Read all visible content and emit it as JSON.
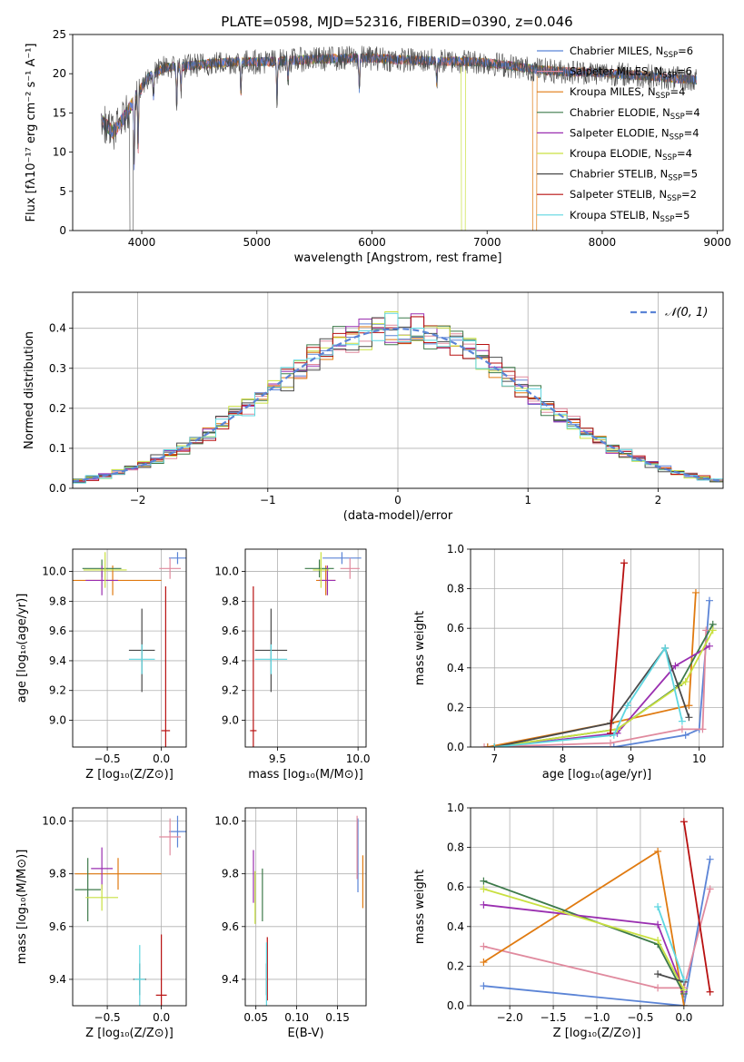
{
  "title": "PLATE=0598, MJD=52316, FIBERID=0390, z=0.046",
  "colors": {
    "Chabrier MILES": "#5b84d6",
    "Salpeter MILES": "#e08a9e",
    "Kroupa MILES": "#e07a10",
    "Chabrier ELODIE": "#3d7a4a",
    "Salpeter ELODIE": "#9a2fb0",
    "Kroupa ELODIE": "#c9e040",
    "Chabrier STELIB": "#4a4a4a",
    "Salpeter STELIB": "#b81010",
    "Kroupa STELIB": "#5ed6e0",
    "normal": "#5b84d6",
    "grid": "#b0b0b0"
  },
  "chart_data": [
    {
      "id": "spectrum",
      "type": "line",
      "xlabel": "wavelength [Angstrom, rest frame]",
      "ylabel": "Flux [fλ10⁻¹⁷ erg cm⁻² s⁻¹ A⁻¹]",
      "xlim": [
        3400,
        9050
      ],
      "ylim": [
        0,
        25
      ],
      "xticks": [
        4000,
        5000,
        6000,
        7000,
        8000,
        9000
      ],
      "yticks": [
        0,
        5,
        10,
        15,
        20,
        25
      ],
      "grid": false,
      "legend_position": "top-right",
      "legend": [
        {
          "name": "Chabrier MILES",
          "label": "Chabrier MILES, N",
          "nssp": "=6"
        },
        {
          "name": "Salpeter MILES",
          "label": "Salpeter MILES, N",
          "nssp": "=6"
        },
        {
          "name": "Kroupa MILES",
          "label": "Kroupa MILES, N",
          "nssp": "=4"
        },
        {
          "name": "Chabrier ELODIE",
          "label": "Chabrier ELODIE, N",
          "nssp": "=4"
        },
        {
          "name": "Salpeter ELODIE",
          "label": "Salpeter ELODIE, N",
          "nssp": "=4"
        },
        {
          "name": "Kroupa ELODIE",
          "label": "Kroupa ELODIE, N",
          "nssp": "=4"
        },
        {
          "name": "Chabrier STELIB",
          "label": "Chabrier STELIB, N",
          "nssp": "=5"
        },
        {
          "name": "Salpeter STELIB",
          "label": "Salpeter STELIB, N",
          "nssp": "=2"
        },
        {
          "name": "Kroupa STELIB",
          "label": "Kroupa STELIB, N",
          "nssp": "=5"
        }
      ],
      "legend_subscript": "SSP",
      "continuum": [
        [
          3650,
          14.0
        ],
        [
          3750,
          12.5
        ],
        [
          3850,
          14.5
        ],
        [
          3950,
          17.0
        ],
        [
          4050,
          19.5
        ],
        [
          4200,
          20.8
        ],
        [
          4400,
          21.0
        ],
        [
          4600,
          21.3
        ],
        [
          4800,
          21.5
        ],
        [
          5000,
          21.5
        ],
        [
          5200,
          21.6
        ],
        [
          5400,
          21.8
        ],
        [
          5600,
          21.9
        ],
        [
          5800,
          22.0
        ],
        [
          6000,
          22.0
        ],
        [
          6200,
          21.8
        ],
        [
          6400,
          21.7
        ],
        [
          6600,
          21.6
        ],
        [
          6800,
          21.6
        ],
        [
          7000,
          21.4
        ],
        [
          7200,
          21.0
        ],
        [
          7400,
          20.6
        ],
        [
          7600,
          20.3
        ],
        [
          7800,
          20.2
        ],
        [
          8000,
          20.1
        ],
        [
          8200,
          19.9
        ],
        [
          8400,
          19.7
        ],
        [
          8600,
          19.4
        ],
        [
          8800,
          19.2
        ]
      ],
      "absorption_lines": [
        [
          3934,
          8
        ],
        [
          3969,
          7
        ],
        [
          4102,
          3
        ],
        [
          4304,
          5
        ],
        [
          4340,
          3
        ],
        [
          4861,
          4
        ],
        [
          5175,
          5
        ],
        [
          5270,
          2.5
        ],
        [
          5890,
          4
        ],
        [
          6563,
          3
        ]
      ],
      "drop_outs": [
        {
          "name": "Chabrier STELIB",
          "x": [
            3895,
            3925
          ]
        },
        {
          "name": "Kroupa ELODIE",
          "x": [
            6775,
            6810
          ]
        },
        {
          "name": "Kroupa MILES",
          "x": [
            7395,
            7430
          ]
        }
      ]
    },
    {
      "id": "residuals",
      "type": "step",
      "xlabel": "(data-model)/error",
      "ylabel": "Normed distribution",
      "xlim": [
        -2.5,
        2.5
      ],
      "ylim": [
        0,
        0.49
      ],
      "xticks": [
        -2,
        -1,
        0,
        1,
        2
      ],
      "yticks": [
        0.0,
        0.1,
        0.2,
        0.3,
        0.4
      ],
      "grid": true,
      "bin_width": 0.1,
      "legend_position": "top-right",
      "normal_label": "𝒩(0, 1)"
    },
    {
      "id": "age-vs-Z",
      "type": "scatter",
      "xlabel": "Z [log₁₀(Z/Z⊙)]",
      "ylabel": "age  [log₁₀(age/yr)]",
      "xlim": [
        -0.82,
        0.23
      ],
      "ylim": [
        8.82,
        10.15
      ],
      "xticks": [
        -0.5,
        0.0
      ],
      "yticks": [
        9.0,
        9.2,
        9.4,
        9.6,
        9.8,
        10.0
      ],
      "grid": true,
      "points": [
        {
          "name": "Chabrier MILES",
          "x": 0.15,
          "y": 10.09,
          "xerr": 0.08,
          "yerr": 0.04
        },
        {
          "name": "Salpeter MILES",
          "x": 0.08,
          "y": 10.02,
          "xerr": 0.1,
          "yerr": 0.07
        },
        {
          "name": "Kroupa MILES",
          "x": -0.45,
          "y": 9.94,
          "xerr": 0.45,
          "yerr": 0.1
        },
        {
          "name": "Chabrier ELODIE",
          "x": -0.55,
          "y": 10.02,
          "xerr": 0.18,
          "yerr": 0.06
        },
        {
          "name": "Salpeter ELODIE",
          "x": -0.55,
          "y": 9.94,
          "xerr": 0.15,
          "yerr": 0.1
        },
        {
          "name": "Kroupa ELODIE",
          "x": -0.52,
          "y": 10.01,
          "xerr": 0.2,
          "yerr": 0.12
        },
        {
          "name": "Chabrier STELIB",
          "x": -0.18,
          "y": 9.47,
          "xerr": 0.12,
          "yerr": 0.28
        },
        {
          "name": "Salpeter STELIB",
          "x": 0.04,
          "y": 8.93,
          "xerr": 0.04,
          "yerr": 0.97
        },
        {
          "name": "Kroupa STELIB",
          "x": -0.18,
          "y": 9.41,
          "xerr": 0.12,
          "yerr": 0.1
        }
      ]
    },
    {
      "id": "age-vs-mass",
      "type": "scatter",
      "xlabel": "mass [log₁₀(M/M⊙)]",
      "ylabel": "",
      "xlim": [
        9.3,
        10.05
      ],
      "ylim": [
        8.82,
        10.15
      ],
      "xticks": [
        9.5,
        10.0
      ],
      "yticks": [
        9.0,
        9.2,
        9.4,
        9.6,
        9.8,
        10.0
      ],
      "grid": true,
      "points": [
        {
          "name": "Chabrier MILES",
          "x": 9.9,
          "y": 10.09,
          "xerr": 0.12,
          "yerr": 0.04
        },
        {
          "name": "Salpeter MILES",
          "x": 9.95,
          "y": 10.02,
          "xerr": 0.06,
          "yerr": 0.07
        },
        {
          "name": "Kroupa MILES",
          "x": 9.8,
          "y": 9.94,
          "xerr": 0.06,
          "yerr": 0.1
        },
        {
          "name": "Chabrier ELODIE",
          "x": 9.76,
          "y": 10.02,
          "xerr": 0.09,
          "yerr": 0.06
        },
        {
          "name": "Salpeter ELODIE",
          "x": 9.81,
          "y": 9.94,
          "xerr": 0.05,
          "yerr": 0.1
        },
        {
          "name": "Kroupa ELODIE",
          "x": 9.77,
          "y": 10.01,
          "xerr": 0.05,
          "yerr": 0.12
        },
        {
          "name": "Chabrier STELIB",
          "x": 9.46,
          "y": 9.47,
          "xerr": 0.1,
          "yerr": 0.28
        },
        {
          "name": "Salpeter STELIB",
          "x": 9.35,
          "y": 8.93,
          "xerr": 0.02,
          "yerr": 0.97
        },
        {
          "name": "Kroupa STELIB",
          "x": 9.46,
          "y": 9.41,
          "xerr": 0.1,
          "yerr": 0.1
        }
      ]
    },
    {
      "id": "mass-weight-vs-age",
      "type": "line",
      "xlabel": "age  [log₁₀(age/yr)]",
      "ylabel": "mass weight",
      "xlim": [
        6.65,
        10.35
      ],
      "ylim": [
        0,
        1.0
      ],
      "xticks": [
        7,
        8,
        9,
        10
      ],
      "yticks": [
        0.0,
        0.2,
        0.4,
        0.6,
        0.8,
        1.0
      ],
      "grid": true,
      "series": [
        {
          "name": "Chabrier MILES",
          "x": [
            6.9,
            8.75,
            9.8,
            10.0,
            10.15
          ],
          "y": [
            0.0,
            0.0,
            0.06,
            0.09,
            0.74
          ]
        },
        {
          "name": "Salpeter MILES",
          "x": [
            6.85,
            8.7,
            9.75,
            10.05,
            10.1
          ],
          "y": [
            0.0,
            0.02,
            0.09,
            0.09,
            0.59
          ]
        },
        {
          "name": "Kroupa MILES",
          "x": [
            6.9,
            8.7,
            9.85,
            9.95
          ],
          "y": [
            0.0,
            0.12,
            0.21,
            0.78
          ]
        },
        {
          "name": "Chabrier ELODIE",
          "x": [
            7.0,
            8.8,
            9.7,
            10.2
          ],
          "y": [
            0.0,
            0.09,
            0.31,
            0.62
          ]
        },
        {
          "name": "Salpeter ELODIE",
          "x": [
            7.0,
            8.8,
            9.65,
            10.15
          ],
          "y": [
            0.0,
            0.07,
            0.41,
            0.51
          ]
        },
        {
          "name": "Kroupa ELODIE",
          "x": [
            7.0,
            8.8,
            9.8,
            10.2
          ],
          "y": [
            0.0,
            0.09,
            0.33,
            0.59
          ]
        },
        {
          "name": "Chabrier STELIB",
          "x": [
            7.0,
            8.7,
            9.5,
            9.85
          ],
          "y": [
            0.0,
            0.12,
            0.5,
            0.15
          ]
        },
        {
          "name": "Salpeter STELIB",
          "x": [
            8.7,
            8.9
          ],
          "y": [
            0.07,
            0.93
          ]
        },
        {
          "name": "Kroupa STELIB",
          "x": [
            7.0,
            8.75,
            8.95,
            9.5,
            9.75
          ],
          "y": [
            0.0,
            0.06,
            0.21,
            0.5,
            0.13
          ]
        }
      ]
    },
    {
      "id": "mass-vs-Z",
      "type": "scatter",
      "xlabel": "Z [log₁₀(Z/Z⊙)]",
      "ylabel": "mass [log₁₀(M/M⊙)]",
      "xlim": [
        -0.82,
        0.23
      ],
      "ylim": [
        9.3,
        10.05
      ],
      "xticks": [
        -0.5,
        0.0
      ],
      "yticks": [
        9.4,
        9.6,
        9.8,
        10.0
      ],
      "grid": true,
      "points": [
        {
          "name": "Chabrier MILES",
          "x": 0.15,
          "y": 9.96,
          "xerr": 0.08,
          "yerr": 0.06
        },
        {
          "name": "Salpeter MILES",
          "x": 0.08,
          "y": 9.94,
          "xerr": 0.1,
          "yerr": 0.07
        },
        {
          "name": "Kroupa MILES",
          "x": -0.4,
          "y": 9.8,
          "xerr": 0.4,
          "yerr": 0.06
        },
        {
          "name": "Chabrier ELODIE",
          "x": -0.68,
          "y": 9.74,
          "xerr": 0.12,
          "yerr": 0.12
        },
        {
          "name": "Salpeter ELODIE",
          "x": -0.55,
          "y": 9.82,
          "xerr": 0.1,
          "yerr": 0.08
        },
        {
          "name": "Kroupa ELODIE",
          "x": -0.55,
          "y": 9.71,
          "xerr": 0.15,
          "yerr": 0.05
        },
        {
          "name": "Chabrier STELIB",
          "x": -0.2,
          "y": 9.4,
          "xerr": 0.06,
          "yerr": 0.06
        },
        {
          "name": "Salpeter STELIB",
          "x": 0.0,
          "y": 9.34,
          "xerr": 0.05,
          "yerr": 0.23
        },
        {
          "name": "Kroupa STELIB",
          "x": -0.2,
          "y": 9.4,
          "xerr": 0.05,
          "yerr": 0.13
        }
      ]
    },
    {
      "id": "mass-vs-ebv",
      "type": "scatter",
      "xlabel": "E(B-V)",
      "ylabel": "",
      "xlim": [
        0.037,
        0.185
      ],
      "ylim": [
        9.3,
        10.05
      ],
      "xticks": [
        0.05,
        0.1,
        0.15
      ],
      "yticks": [
        9.4,
        9.6,
        9.8,
        10.0
      ],
      "grid": true,
      "points": [
        {
          "name": "Chabrier MILES",
          "x": 0.175,
          "y": 9.87,
          "xerr": 0.0,
          "yerr": 0.14
        },
        {
          "name": "Salpeter MILES",
          "x": 0.174,
          "y": 9.9,
          "xerr": 0.0,
          "yerr": 0.12
        },
        {
          "name": "Kroupa MILES",
          "x": 0.181,
          "y": 9.77,
          "xerr": 0.0,
          "yerr": 0.1
        },
        {
          "name": "Chabrier ELODIE",
          "x": 0.058,
          "y": 9.72,
          "xerr": 0.0,
          "yerr": 0.1
        },
        {
          "name": "Salpeter ELODIE",
          "x": 0.047,
          "y": 9.79,
          "xerr": 0.0,
          "yerr": 0.1
        },
        {
          "name": "Kroupa ELODIE",
          "x": 0.049,
          "y": 9.71,
          "xerr": 0.0,
          "yerr": 0.1
        },
        {
          "name": "Chabrier STELIB",
          "x": 0.063,
          "y": 9.4,
          "xerr": 0.0,
          "yerr": 0.06
        },
        {
          "name": "Salpeter STELIB",
          "x": 0.064,
          "y": 9.44,
          "xerr": 0.0,
          "yerr": 0.12
        },
        {
          "name": "Kroupa STELIB",
          "x": 0.063,
          "y": 9.42,
          "xerr": 0.0,
          "yerr": 0.12
        }
      ]
    },
    {
      "id": "mass-weight-vs-Z",
      "type": "line",
      "xlabel": "Z [log₁₀(Z/Z⊙)]",
      "ylabel": "mass weight",
      "xlim": [
        -2.45,
        0.45
      ],
      "ylim": [
        0,
        1.0
      ],
      "xticks": [
        -2.0,
        -1.5,
        -1.0,
        -0.5,
        0.0
      ],
      "yticks": [
        0.0,
        0.2,
        0.4,
        0.6,
        0.8,
        1.0
      ],
      "grid": true,
      "series": [
        {
          "name": "Chabrier MILES",
          "x": [
            -2.3,
            0.0,
            0.3
          ],
          "y": [
            0.1,
            0.0,
            0.74
          ]
        },
        {
          "name": "Salpeter MILES",
          "x": [
            -2.3,
            -0.3,
            0.0,
            0.3
          ],
          "y": [
            0.3,
            0.09,
            0.09,
            0.59
          ]
        },
        {
          "name": "Kroupa MILES",
          "x": [
            -2.3,
            -0.3,
            0.0
          ],
          "y": [
            0.22,
            0.78,
            0.0
          ]
        },
        {
          "name": "Chabrier ELODIE",
          "x": [
            -2.3,
            -0.3,
            0.0
          ],
          "y": [
            0.63,
            0.31,
            0.06
          ]
        },
        {
          "name": "Salpeter ELODIE",
          "x": [
            -2.3,
            -0.3,
            0.0
          ],
          "y": [
            0.51,
            0.41,
            0.07
          ]
        },
        {
          "name": "Kroupa ELODIE",
          "x": [
            -2.3,
            -0.3,
            0.0
          ],
          "y": [
            0.59,
            0.33,
            0.08
          ]
        },
        {
          "name": "Chabrier STELIB",
          "x": [
            -0.3,
            0.0
          ],
          "y": [
            0.16,
            0.12
          ]
        },
        {
          "name": "Salpeter STELIB",
          "x": [
            0.0,
            0.3
          ],
          "y": [
            0.93,
            0.07
          ]
        },
        {
          "name": "Kroupa STELIB",
          "x": [
            -0.3,
            0.0
          ],
          "y": [
            0.5,
            0.13
          ]
        }
      ]
    }
  ]
}
